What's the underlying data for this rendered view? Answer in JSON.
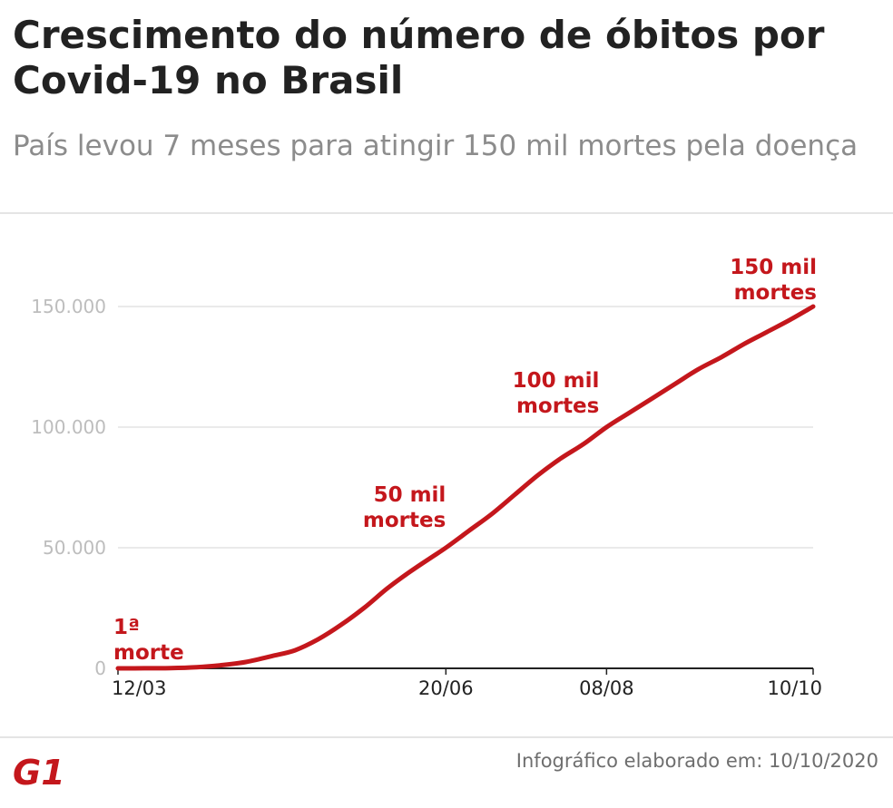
{
  "header": {
    "title": "Crescimento do número de óbitos por Covid-19 no Brasil",
    "subtitle": "País levou 7 meses para atingir 150 mil mortes pela doença"
  },
  "chart_data": {
    "type": "line",
    "title": "Crescimento do número de óbitos por Covid-19 no Brasil",
    "subtitle": "País levou 7 meses para atingir 150 mil mortes pela doença",
    "xlabel": "",
    "ylabel": "",
    "x_type": "date",
    "x_range": [
      "2020-03-12",
      "2020-10-10"
    ],
    "ylim": [
      0,
      150000
    ],
    "y_ticks": [
      0,
      50000,
      100000,
      150000
    ],
    "y_tick_labels": [
      "0",
      "50.000",
      "100.000",
      "150.000"
    ],
    "x_ticks": [
      "2020-03-12",
      "2020-06-20",
      "2020-08-08",
      "2020-10-10"
    ],
    "x_tick_labels": [
      "12/03",
      "20/06",
      "08/08",
      "10/10"
    ],
    "grid": true,
    "line_color": "#c4171c",
    "series": [
      {
        "x": [
          "2020-03-12",
          "2020-03-20",
          "2020-03-28",
          "2020-04-05",
          "2020-04-12",
          "2020-04-20",
          "2020-04-28",
          "2020-05-05",
          "2020-05-12",
          "2020-05-19",
          "2020-05-26",
          "2020-06-02",
          "2020-06-09",
          "2020-06-15",
          "2020-06-20",
          "2020-06-27",
          "2020-07-04",
          "2020-07-11",
          "2020-07-18",
          "2020-07-25",
          "2020-08-01",
          "2020-08-08",
          "2020-08-15",
          "2020-08-22",
          "2020-08-29",
          "2020-09-05",
          "2020-09-12",
          "2020-09-19",
          "2020-09-26",
          "2020-10-03",
          "2020-10-10"
        ],
        "values": [
          1,
          20,
          110,
          490,
          1250,
          2650,
          5100,
          7500,
          12000,
          18000,
          25000,
          33000,
          40000,
          45500,
          50000,
          57000,
          64000,
          72000,
          80000,
          87000,
          93000,
          100000,
          106000,
          112000,
          118000,
          124000,
          129000,
          134500,
          139500,
          144500,
          150000
        ]
      }
    ],
    "annotations": [
      {
        "x": "2020-03-12",
        "y": 1,
        "line1": "1ª",
        "line2": "morte"
      },
      {
        "x": "2020-06-20",
        "y": 50000,
        "line1": "50 mil",
        "line2": "mortes"
      },
      {
        "x": "2020-08-08",
        "y": 100000,
        "line1": "100 mil",
        "line2": "mortes"
      },
      {
        "x": "2020-10-10",
        "y": 150000,
        "line1": "150 mil",
        "line2": "mortes"
      }
    ]
  },
  "footer": {
    "logo": "G1",
    "credit": "Infográfico elaborado em: 10/10/2020",
    "logo_color": "#c4171c"
  }
}
